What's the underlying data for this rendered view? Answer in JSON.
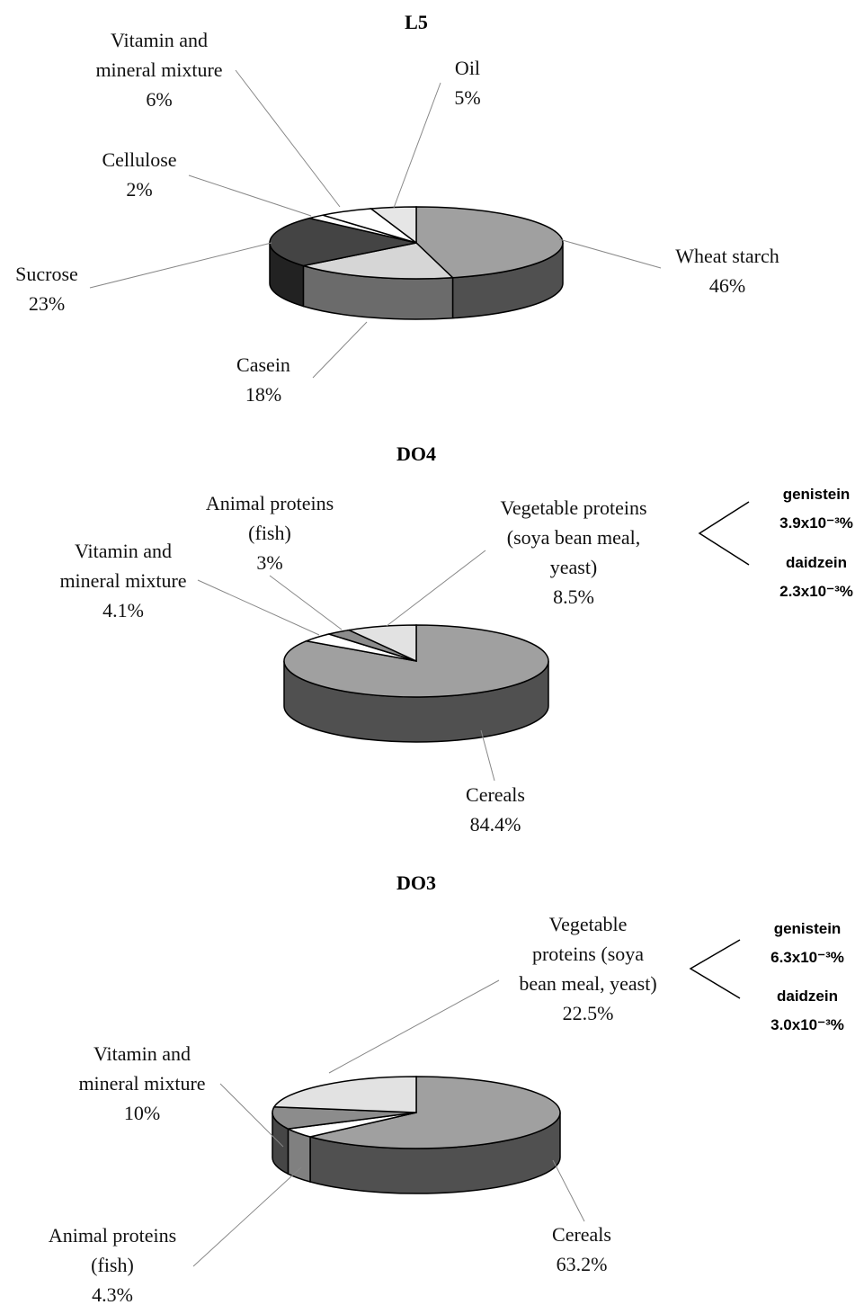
{
  "chart_data": [
    {
      "type": "pie",
      "title": "L5",
      "categories": [
        "Wheat starch",
        "Casein",
        "Sucrose",
        "Cellulose",
        "Vitamin and\nmineral mixture",
        "Oil"
      ],
      "values": [
        46,
        18,
        23,
        2,
        6,
        5
      ],
      "value_labels": [
        "46%",
        "18%",
        "23%",
        "2%",
        "6%",
        "5%"
      ],
      "colors": [
        "#a0a0a0",
        "#d6d6d6",
        "#444444",
        "#ffffff",
        "#ffffff",
        "#e6e6e6"
      ]
    },
    {
      "type": "pie",
      "title": "DO4",
      "categories": [
        "Cereals",
        "Vitamin and\nmineral mixture",
        "Animal proteins\n(fish)",
        "Vegetable proteins\n(soya bean meal,\nyeast)"
      ],
      "values": [
        84.4,
        4.1,
        3,
        8.5
      ],
      "value_labels": [
        "84.4%",
        "4.1%",
        "3%",
        "8.5%"
      ],
      "colors": [
        "#a0a0a0",
        "#ffffff",
        "#8c8c8c",
        "#e2e2e2"
      ],
      "annotations": [
        {
          "label": "genistein",
          "text": "3.9x10⁻³%"
        },
        {
          "label": "daidzein",
          "text": "2.3x10⁻³%"
        }
      ]
    },
    {
      "type": "pie",
      "title": "DO3",
      "categories": [
        "Cereals",
        "Animal proteins\n(fish)",
        "Vitamin and\nmineral mixture",
        "Vegetable\nproteins (soya\nbean meal, yeast)"
      ],
      "values": [
        63.2,
        4.3,
        10,
        22.5
      ],
      "value_labels": [
        "63.2%",
        "4.3%",
        "10%",
        "22.5%"
      ],
      "colors": [
        "#a0a0a0",
        "#ffffff",
        "#8c8c8c",
        "#e2e2e2"
      ],
      "annotations": [
        {
          "label": "genistein",
          "text": "6.3x10⁻³%"
        },
        {
          "label": "daidzein",
          "text": "3.0x10⁻³%"
        }
      ]
    }
  ]
}
